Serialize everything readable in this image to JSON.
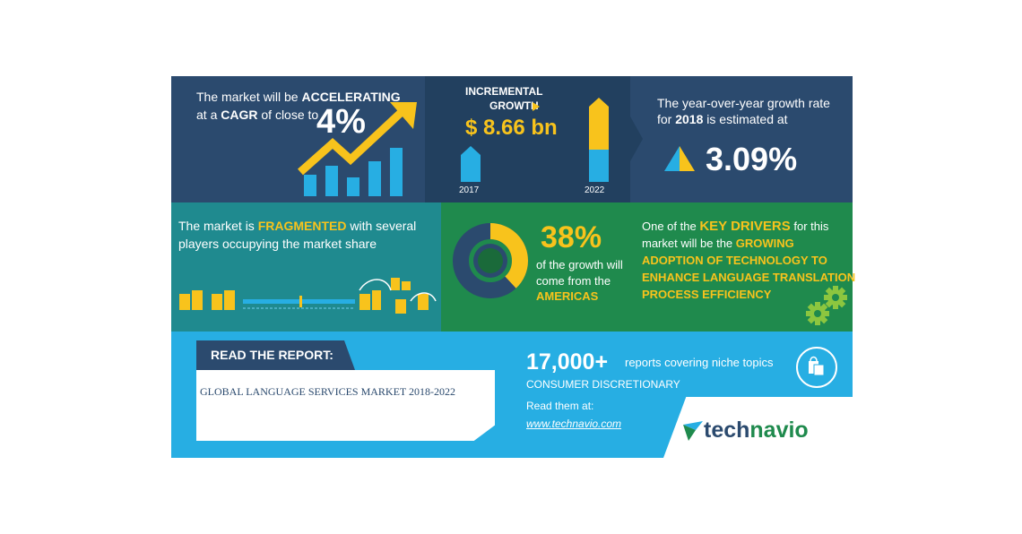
{
  "panel1": {
    "line1_pre": "The market will be ",
    "line1_hl": "ACCELERATING",
    "line2_pre": "at a ",
    "line2_hl": "CAGR",
    "line2_post": " of close to",
    "value": "4%"
  },
  "panel2": {
    "label1": "INCREMENTAL",
    "label2": "GROWTH",
    "value": "$ 8.66 bn",
    "year_start": "2017",
    "year_end": "2022"
  },
  "panel3": {
    "line1": "The year-over-year growth rate",
    "line2_pre": "for ",
    "line2_hl": "2018",
    "line2_post": " is estimated at",
    "value": "3.09%"
  },
  "panel4": {
    "line1_pre": "The market is ",
    "line1_hl": "FRAGMENTED",
    "line1_post": " with several",
    "line2": "players occupying the market share"
  },
  "panel5": {
    "value": "38%",
    "line1": "of the growth will",
    "line2": "come from the",
    "region": "AMERICAS",
    "share_fraction": 0.38
  },
  "panel6": {
    "line1_pre": "One of the ",
    "line1_hl": "KEY DRIVERS",
    "line1_post": " for this",
    "line2_pre": "market will be the ",
    "line2_hl": "GROWING",
    "line3": "ADOPTION OF TECHNOLOGY TO",
    "line4": "ENHANCE LANGUAGE TRANSLATION",
    "line5": "PROCESS EFFICIENCY"
  },
  "report": {
    "heading": "READ THE REPORT:",
    "title": "GLOBAL LANGUAGE SERVICES MARKET 2018-2022",
    "count": "17,000+",
    "count_desc": "reports covering niche topics",
    "category": "CONSUMER DISCRETIONARY",
    "read_label": "Read them at:",
    "url": "www.technavio.com"
  },
  "brand": {
    "part1": "tech",
    "part2": "navio"
  },
  "colors": {
    "yellow": "#f8c31c",
    "blue": "#27aee3",
    "navy": "#2b4a6e",
    "green": "#1f8a4d",
    "teal": "#1f8a8f"
  }
}
